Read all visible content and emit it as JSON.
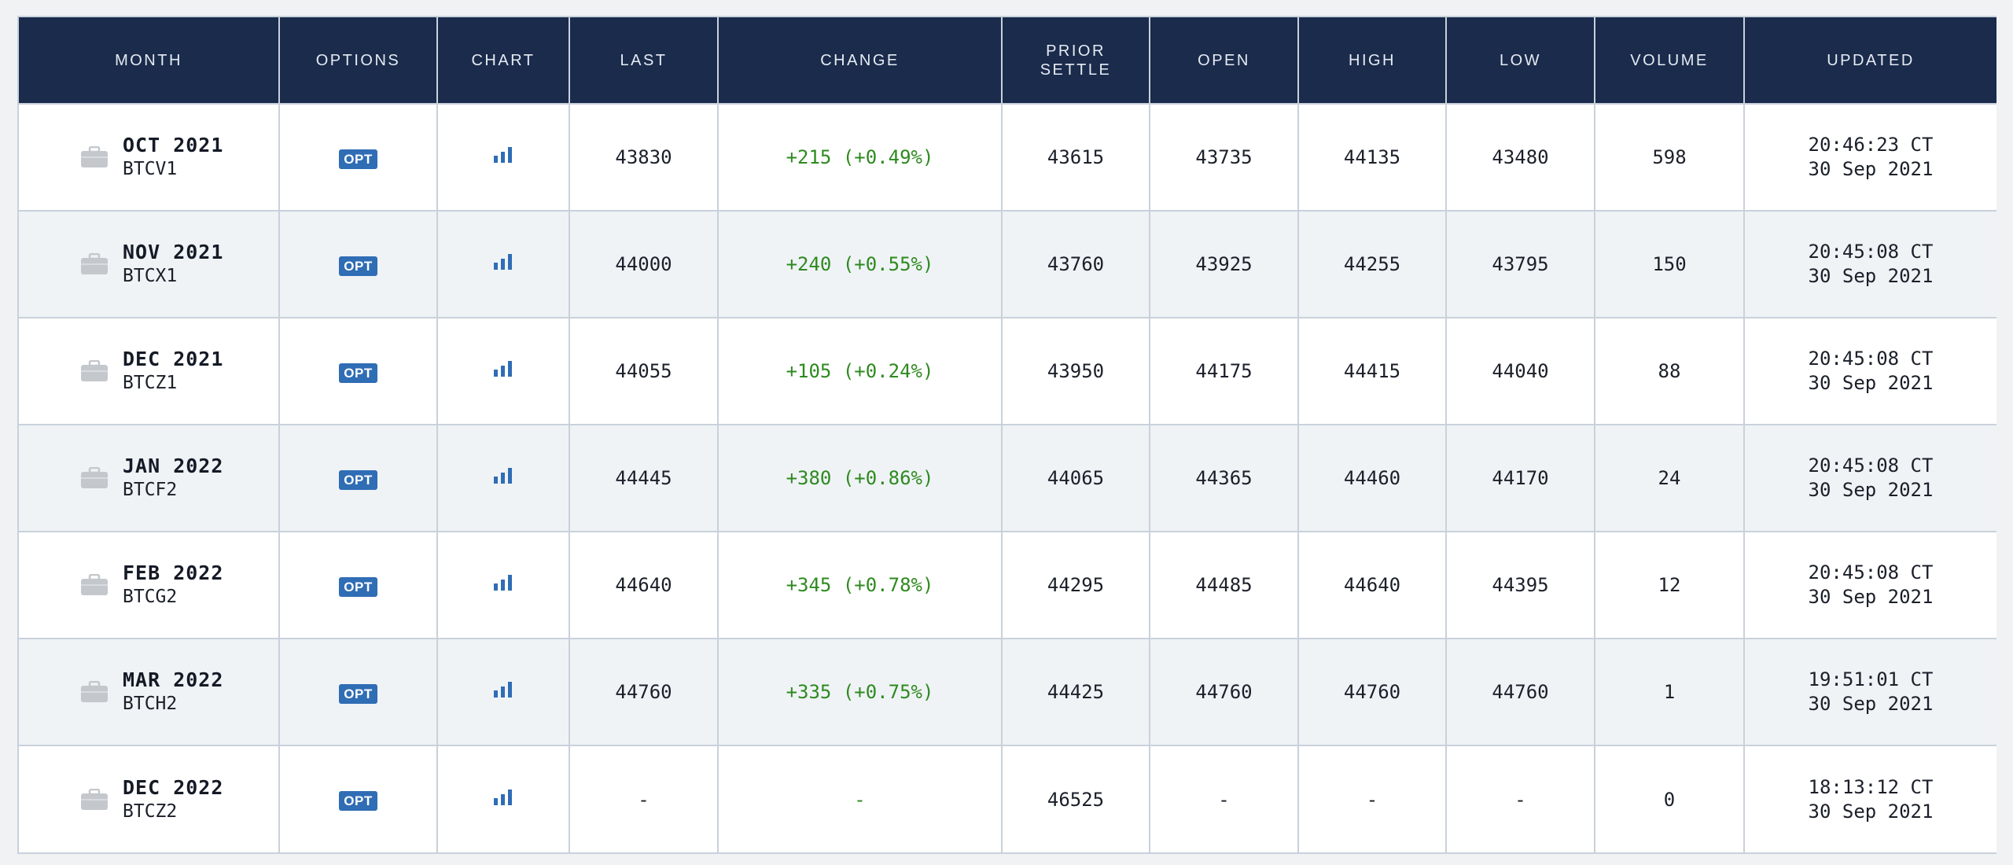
{
  "header": {
    "month": "MONTH",
    "options": "OPTIONS",
    "chart": "CHART",
    "last": "LAST",
    "change": "CHANGE",
    "prior_settle_line1": "PRIOR",
    "prior_settle_line2": "SETTLE",
    "open": "OPEN",
    "high": "HIGH",
    "low": "LOW",
    "volume": "VOLUME",
    "updated": "UPDATED"
  },
  "icons": {
    "month": "briefcase-icon",
    "chart": "bar-chart-icon"
  },
  "colors": {
    "header_bg": "#1a2b4c",
    "opt_badge": "#2f6db5",
    "change_positive": "#2e8a1f",
    "chart_icon": "#2f6db5"
  },
  "rows": [
    {
      "month": "OCT 2021",
      "code": "BTCV1",
      "opt": "OPT",
      "last": "43830",
      "change": "+215 (+0.49%)",
      "prior_settle": "43615",
      "open": "43735",
      "high": "44135",
      "low": "43480",
      "volume": "598",
      "updated_time": "20:46:23 CT",
      "updated_date": "30 Sep 2021"
    },
    {
      "month": "NOV 2021",
      "code": "BTCX1",
      "opt": "OPT",
      "last": "44000",
      "change": "+240 (+0.55%)",
      "prior_settle": "43760",
      "open": "43925",
      "high": "44255",
      "low": "43795",
      "volume": "150",
      "updated_time": "20:45:08 CT",
      "updated_date": "30 Sep 2021"
    },
    {
      "month": "DEC 2021",
      "code": "BTCZ1",
      "opt": "OPT",
      "last": "44055",
      "change": "+105 (+0.24%)",
      "prior_settle": "43950",
      "open": "44175",
      "high": "44415",
      "low": "44040",
      "volume": "88",
      "updated_time": "20:45:08 CT",
      "updated_date": "30 Sep 2021"
    },
    {
      "month": "JAN 2022",
      "code": "BTCF2",
      "opt": "OPT",
      "last": "44445",
      "change": "+380 (+0.86%)",
      "prior_settle": "44065",
      "open": "44365",
      "high": "44460",
      "low": "44170",
      "volume": "24",
      "updated_time": "20:45:08 CT",
      "updated_date": "30 Sep 2021"
    },
    {
      "month": "FEB 2022",
      "code": "BTCG2",
      "opt": "OPT",
      "last": "44640",
      "change": "+345 (+0.78%)",
      "prior_settle": "44295",
      "open": "44485",
      "high": "44640",
      "low": "44395",
      "volume": "12",
      "updated_time": "20:45:08 CT",
      "updated_date": "30 Sep 2021"
    },
    {
      "month": "MAR 2022",
      "code": "BTCH2",
      "opt": "OPT",
      "last": "44760",
      "change": "+335 (+0.75%)",
      "prior_settle": "44425",
      "open": "44760",
      "high": "44760",
      "low": "44760",
      "volume": "1",
      "updated_time": "19:51:01 CT",
      "updated_date": "30 Sep 2021"
    },
    {
      "month": "DEC 2022",
      "code": "BTCZ2",
      "opt": "OPT",
      "last": "-",
      "change": "-",
      "prior_settle": "46525",
      "open": "-",
      "high": "-",
      "low": "-",
      "volume": "0",
      "updated_time": "18:13:12 CT",
      "updated_date": "30 Sep 2021"
    }
  ]
}
